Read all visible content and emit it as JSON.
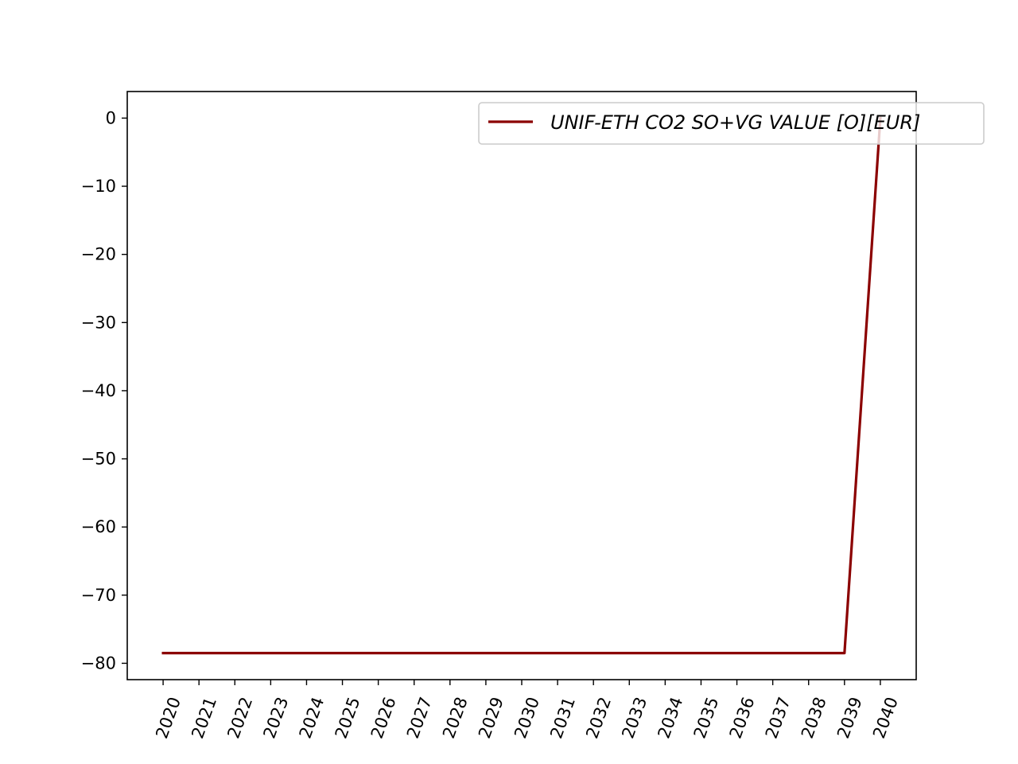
{
  "chart_data": {
    "type": "line",
    "title": "",
    "xlabel": "",
    "ylabel": "",
    "x": [
      2020,
      2021,
      2022,
      2023,
      2024,
      2025,
      2026,
      2027,
      2028,
      2029,
      2030,
      2031,
      2032,
      2033,
      2034,
      2035,
      2036,
      2037,
      2038,
      2039,
      2040
    ],
    "x_tick_labels": [
      "2020",
      "2021",
      "2022",
      "2023",
      "2024",
      "2025",
      "2026",
      "2027",
      "2028",
      "2029",
      "2030",
      "2031",
      "2032",
      "2033",
      "2034",
      "2035",
      "2036",
      "2037",
      "2038",
      "2039",
      "2040"
    ],
    "y_ticks": [
      0,
      -10,
      -20,
      -30,
      -40,
      -50,
      -60,
      -70,
      -80
    ],
    "y_tick_labels": [
      "0",
      "−10",
      "−20",
      "−30",
      "−40",
      "−50",
      "−60",
      "−70",
      "−80"
    ],
    "xlim": [
      2019,
      2041
    ],
    "ylim": [
      -82.4,
      3.9
    ],
    "grid": false,
    "legend_position": "top-right",
    "series": [
      {
        "name": "UNIF-ETH CO2 SO+VG VALUE [O][EUR]",
        "color": "#8b0000",
        "values": [
          -78.5,
          -78.5,
          -78.5,
          -78.5,
          -78.5,
          -78.5,
          -78.5,
          -78.5,
          -78.5,
          -78.5,
          -78.5,
          -78.5,
          -78.5,
          -78.5,
          -78.5,
          -78.5,
          -78.5,
          -78.5,
          -78.5,
          -78.5,
          0
        ]
      }
    ]
  }
}
